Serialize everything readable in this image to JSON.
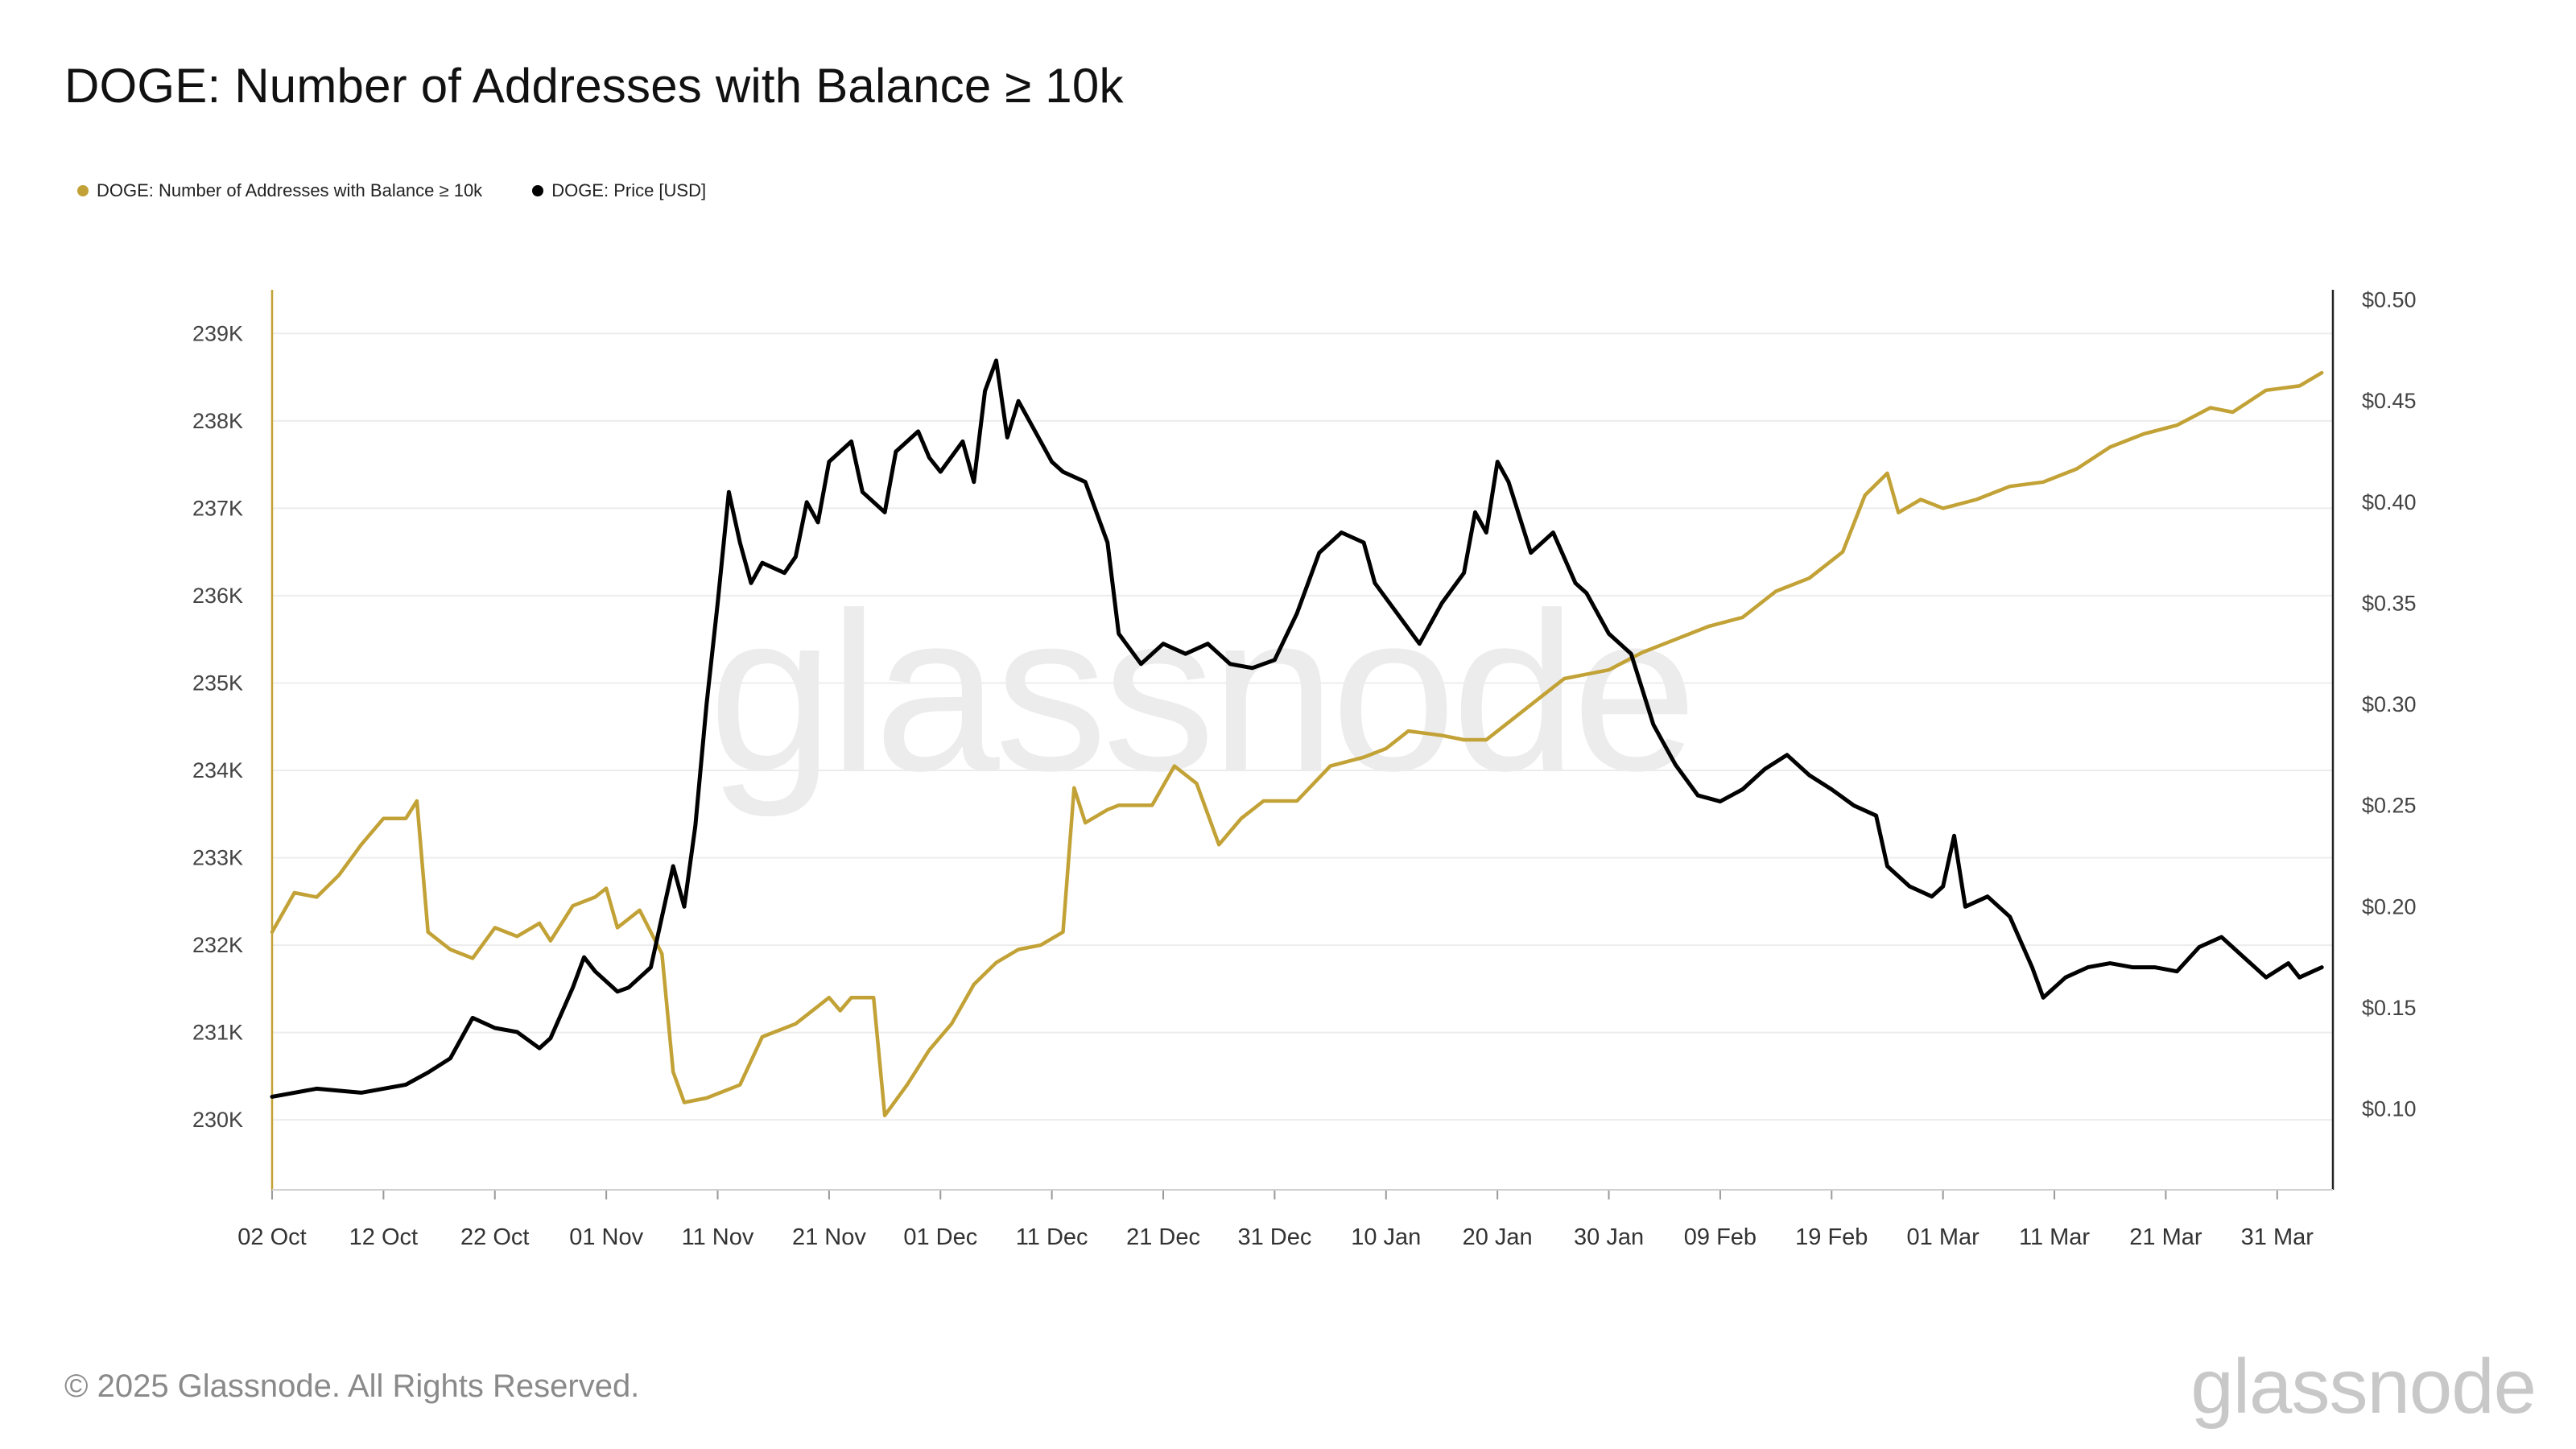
{
  "title": "DOGE: Number of Addresses with Balance ≥ 10k",
  "legend": [
    {
      "label": "DOGE: Number of Addresses with Balance ≥ 10k",
      "color": "#c2a236"
    },
    {
      "label": "DOGE: Price [USD]",
      "color": "#000000"
    }
  ],
  "watermark": "glassnode",
  "footer": {
    "copyright": "© 2025 Glassnode. All Rights Reserved.",
    "brand": "glassnode"
  },
  "chart_data": {
    "type": "line",
    "title": "DOGE: Number of Addresses with Balance ≥ 10k",
    "x_tick_labels": [
      "02 Oct",
      "12 Oct",
      "22 Oct",
      "01 Nov",
      "11 Nov",
      "21 Nov",
      "01 Dec",
      "11 Dec",
      "21 Dec",
      "31 Dec",
      "10 Jan",
      "20 Jan",
      "30 Jan",
      "09 Feb",
      "19 Feb",
      "01 Mar",
      "11 Mar",
      "21 Mar",
      "31 Mar"
    ],
    "x_range": [
      "2024-10-02",
      "2025-04-05"
    ],
    "y_left": {
      "ylim": [
        229200,
        239500
      ],
      "ticks": [
        230000,
        231000,
        232000,
        233000,
        234000,
        235000,
        236000,
        237000,
        238000,
        239000
      ],
      "tick_labels": [
        "230K",
        "231K",
        "232K",
        "233K",
        "234K",
        "235K",
        "236K",
        "237K",
        "238K",
        "239K"
      ]
    },
    "y_right": {
      "ylim": [
        0.06,
        0.505
      ],
      "ticks": [
        0.1,
        0.15,
        0.2,
        0.25,
        0.3,
        0.35,
        0.4,
        0.45,
        0.5
      ],
      "tick_labels": [
        "$0.10",
        "$0.15",
        "$0.20",
        "$0.25",
        "$0.30",
        "$0.35",
        "$0.40",
        "$0.45",
        "$0.50"
      ]
    },
    "grid": true,
    "legend_position": "top-left",
    "series": [
      {
        "name": "DOGE: Number of Addresses with Balance ≥ 10k",
        "axis": "left",
        "color": "#c2a236",
        "points": [
          [
            "2024-10-02",
            232150
          ],
          [
            "2024-10-04",
            232600
          ],
          [
            "2024-10-06",
            232550
          ],
          [
            "2024-10-08",
            232800
          ],
          [
            "2024-10-10",
            233150
          ],
          [
            "2024-10-12",
            233450
          ],
          [
            "2024-10-14",
            233450
          ],
          [
            "2024-10-15",
            233650
          ],
          [
            "2024-10-16",
            232150
          ],
          [
            "2024-10-18",
            231950
          ],
          [
            "2024-10-20",
            231850
          ],
          [
            "2024-10-22",
            232200
          ],
          [
            "2024-10-24",
            232100
          ],
          [
            "2024-10-26",
            232250
          ],
          [
            "2024-10-27",
            232050
          ],
          [
            "2024-10-29",
            232450
          ],
          [
            "2024-10-31",
            232550
          ],
          [
            "2024-11-01",
            232650
          ],
          [
            "2024-11-02",
            232200
          ],
          [
            "2024-11-04",
            232400
          ],
          [
            "2024-11-06",
            231900
          ],
          [
            "2024-11-07",
            230550
          ],
          [
            "2024-11-08",
            230200
          ],
          [
            "2024-11-10",
            230250
          ],
          [
            "2024-11-13",
            230400
          ],
          [
            "2024-11-15",
            230950
          ],
          [
            "2024-11-18",
            231100
          ],
          [
            "2024-11-21",
            231400
          ],
          [
            "2024-11-22",
            231250
          ],
          [
            "2024-11-23",
            231400
          ],
          [
            "2024-11-25",
            231400
          ],
          [
            "2024-11-26",
            230050
          ],
          [
            "2024-11-28",
            230400
          ],
          [
            "2024-11-30",
            230800
          ],
          [
            "2024-12-02",
            231100
          ],
          [
            "2024-12-04",
            231550
          ],
          [
            "2024-12-06",
            231800
          ],
          [
            "2024-12-08",
            231950
          ],
          [
            "2024-12-10",
            232000
          ],
          [
            "2024-12-12",
            232150
          ],
          [
            "2024-12-13",
            233800
          ],
          [
            "2024-12-14",
            233400
          ],
          [
            "2024-12-16",
            233550
          ],
          [
            "2024-12-17",
            233600
          ],
          [
            "2024-12-20",
            233600
          ],
          [
            "2024-12-22",
            234050
          ],
          [
            "2024-12-24",
            233850
          ],
          [
            "2024-12-26",
            233150
          ],
          [
            "2024-12-28",
            233450
          ],
          [
            "2024-12-30",
            233650
          ],
          [
            "2025-01-02",
            233650
          ],
          [
            "2025-01-05",
            234050
          ],
          [
            "2025-01-08",
            234150
          ],
          [
            "2025-01-10",
            234250
          ],
          [
            "2025-01-12",
            234450
          ],
          [
            "2025-01-15",
            234400
          ],
          [
            "2025-01-17",
            234350
          ],
          [
            "2025-01-19",
            234350
          ],
          [
            "2025-01-21",
            234550
          ],
          [
            "2025-01-24",
            234850
          ],
          [
            "2025-01-26",
            235050
          ],
          [
            "2025-01-28",
            235100
          ],
          [
            "2025-01-30",
            235150
          ],
          [
            "2025-02-02",
            235350
          ],
          [
            "2025-02-05",
            235500
          ],
          [
            "2025-02-08",
            235650
          ],
          [
            "2025-02-11",
            235750
          ],
          [
            "2025-02-14",
            236050
          ],
          [
            "2025-02-17",
            236200
          ],
          [
            "2025-02-20",
            236500
          ],
          [
            "2025-02-22",
            237150
          ],
          [
            "2025-02-24",
            237400
          ],
          [
            "2025-02-25",
            236950
          ],
          [
            "2025-02-27",
            237100
          ],
          [
            "2025-03-01",
            237000
          ],
          [
            "2025-03-04",
            237100
          ],
          [
            "2025-03-07",
            237250
          ],
          [
            "2025-03-10",
            237300
          ],
          [
            "2025-03-13",
            237450
          ],
          [
            "2025-03-16",
            237700
          ],
          [
            "2025-03-19",
            237850
          ],
          [
            "2025-03-22",
            237950
          ],
          [
            "2025-03-25",
            238150
          ],
          [
            "2025-03-27",
            238100
          ],
          [
            "2025-03-30",
            238350
          ],
          [
            "2025-04-02",
            238400
          ],
          [
            "2025-04-04",
            238550
          ]
        ]
      },
      {
        "name": "DOGE: Price [USD]",
        "axis": "right",
        "color": "#000000",
        "points": [
          [
            "2024-10-02",
            0.106
          ],
          [
            "2024-10-04",
            0.108
          ],
          [
            "2024-10-06",
            0.11
          ],
          [
            "2024-10-08",
            0.109
          ],
          [
            "2024-10-10",
            0.108
          ],
          [
            "2024-10-12",
            0.11
          ],
          [
            "2024-10-14",
            0.112
          ],
          [
            "2024-10-16",
            0.118
          ],
          [
            "2024-10-18",
            0.125
          ],
          [
            "2024-10-20",
            0.145
          ],
          [
            "2024-10-22",
            0.14
          ],
          [
            "2024-10-24",
            0.138
          ],
          [
            "2024-10-26",
            0.13
          ],
          [
            "2024-10-27",
            0.135
          ],
          [
            "2024-10-29",
            0.16
          ],
          [
            "2024-10-30",
            0.175
          ],
          [
            "2024-10-31",
            0.168
          ],
          [
            "2024-11-02",
            0.158
          ],
          [
            "2024-11-03",
            0.16
          ],
          [
            "2024-11-05",
            0.17
          ],
          [
            "2024-11-06",
            0.195
          ],
          [
            "2024-11-07",
            0.22
          ],
          [
            "2024-11-08",
            0.2
          ],
          [
            "2024-11-09",
            0.24
          ],
          [
            "2024-11-10",
            0.3
          ],
          [
            "2024-11-11",
            0.35
          ],
          [
            "2024-11-12",
            0.405
          ],
          [
            "2024-11-13",
            0.38
          ],
          [
            "2024-11-14",
            0.36
          ],
          [
            "2024-11-15",
            0.37
          ],
          [
            "2024-11-17",
            0.365
          ],
          [
            "2024-11-18",
            0.373
          ],
          [
            "2024-11-19",
            0.4
          ],
          [
            "2024-11-20",
            0.39
          ],
          [
            "2024-11-21",
            0.42
          ],
          [
            "2024-11-23",
            0.43
          ],
          [
            "2024-11-24",
            0.405
          ],
          [
            "2024-11-26",
            0.395
          ],
          [
            "2024-11-27",
            0.425
          ],
          [
            "2024-11-29",
            0.435
          ],
          [
            "2024-11-30",
            0.422
          ],
          [
            "2024-12-01",
            0.415
          ],
          [
            "2024-12-03",
            0.43
          ],
          [
            "2024-12-04",
            0.41
          ],
          [
            "2024-12-05",
            0.455
          ],
          [
            "2024-12-06",
            0.47
          ],
          [
            "2024-12-07",
            0.432
          ],
          [
            "2024-12-08",
            0.45
          ],
          [
            "2024-12-10",
            0.43
          ],
          [
            "2024-12-11",
            0.42
          ],
          [
            "2024-12-12",
            0.415
          ],
          [
            "2024-12-14",
            0.41
          ],
          [
            "2024-12-16",
            0.38
          ],
          [
            "2024-12-17",
            0.335
          ],
          [
            "2024-12-19",
            0.32
          ],
          [
            "2024-12-21",
            0.33
          ],
          [
            "2024-12-23",
            0.325
          ],
          [
            "2024-12-25",
            0.33
          ],
          [
            "2024-12-27",
            0.32
          ],
          [
            "2024-12-29",
            0.318
          ],
          [
            "2024-12-31",
            0.322
          ],
          [
            "2025-01-02",
            0.345
          ],
          [
            "2025-01-04",
            0.375
          ],
          [
            "2025-01-06",
            0.385
          ],
          [
            "2025-01-08",
            0.38
          ],
          [
            "2025-01-09",
            0.36
          ],
          [
            "2025-01-11",
            0.345
          ],
          [
            "2025-01-13",
            0.33
          ],
          [
            "2025-01-15",
            0.35
          ],
          [
            "2025-01-17",
            0.365
          ],
          [
            "2025-01-18",
            0.395
          ],
          [
            "2025-01-19",
            0.385
          ],
          [
            "2025-01-20",
            0.42
          ],
          [
            "2025-01-21",
            0.41
          ],
          [
            "2025-01-23",
            0.375
          ],
          [
            "2025-01-25",
            0.385
          ],
          [
            "2025-01-27",
            0.36
          ],
          [
            "2025-01-28",
            0.355
          ],
          [
            "2025-01-30",
            0.335
          ],
          [
            "2025-02-01",
            0.325
          ],
          [
            "2025-02-03",
            0.29
          ],
          [
            "2025-02-04",
            0.28
          ],
          [
            "2025-02-05",
            0.27
          ],
          [
            "2025-02-07",
            0.255
          ],
          [
            "2025-02-09",
            0.252
          ],
          [
            "2025-02-11",
            0.258
          ],
          [
            "2025-02-13",
            0.268
          ],
          [
            "2025-02-15",
            0.275
          ],
          [
            "2025-02-17",
            0.265
          ],
          [
            "2025-02-19",
            0.258
          ],
          [
            "2025-02-21",
            0.25
          ],
          [
            "2025-02-23",
            0.245
          ],
          [
            "2025-02-24",
            0.22
          ],
          [
            "2025-02-26",
            0.21
          ],
          [
            "2025-02-28",
            0.205
          ],
          [
            "2025-03-01",
            0.21
          ],
          [
            "2025-03-02",
            0.235
          ],
          [
            "2025-03-03",
            0.2
          ],
          [
            "2025-03-05",
            0.205
          ],
          [
            "2025-03-07",
            0.195
          ],
          [
            "2025-03-09",
            0.17
          ],
          [
            "2025-03-10",
            0.155
          ],
          [
            "2025-03-12",
            0.165
          ],
          [
            "2025-03-14",
            0.17
          ],
          [
            "2025-03-16",
            0.172
          ],
          [
            "2025-03-18",
            0.17
          ],
          [
            "2025-03-20",
            0.17
          ],
          [
            "2025-03-22",
            0.168
          ],
          [
            "2025-03-24",
            0.18
          ],
          [
            "2025-03-26",
            0.185
          ],
          [
            "2025-03-28",
            0.175
          ],
          [
            "2025-03-30",
            0.165
          ],
          [
            "2025-04-01",
            0.172
          ],
          [
            "2025-04-02",
            0.165
          ],
          [
            "2025-04-04",
            0.17
          ]
        ]
      }
    ]
  }
}
